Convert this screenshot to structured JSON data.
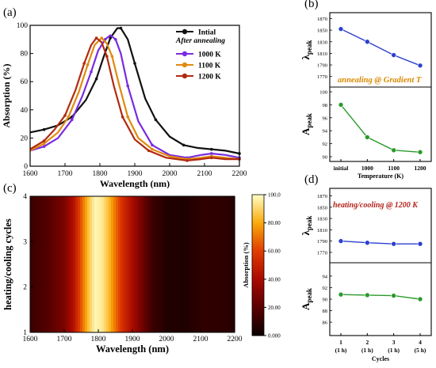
{
  "colors": {
    "intial": "#111111",
    "k1000": "#7a2be0",
    "k1100": "#e08a10",
    "k1200": "#b22a10",
    "peak_series": "#2b3fd0",
    "abs_series": "#2a9a2a",
    "annotation_a": "#d98a00",
    "annotation_d": "#b2221a"
  },
  "chart_data": [
    {
      "panel": "(a)",
      "type": "line",
      "xlabel": "Wavelength (nm)",
      "ylabel": "Absorption (%)",
      "xlim": [
        1600,
        2200
      ],
      "ylim": [
        0,
        100
      ],
      "xticks": [
        1600,
        1700,
        1800,
        1900,
        2000,
        2100,
        2200
      ],
      "yticks": [
        0,
        20,
        40,
        60,
        80,
        100
      ],
      "legend_header": "After annealing",
      "legend_placement": "top-right",
      "series": [
        {
          "name": "Intial",
          "x": [
            1600,
            1640,
            1680,
            1720,
            1760,
            1790,
            1810,
            1830,
            1850,
            1860,
            1880,
            1900,
            1930,
            1960,
            2000,
            2040,
            2080,
            2120,
            2160,
            2200
          ],
          "y": [
            24,
            26,
            29,
            35,
            47,
            62,
            77,
            91,
            98,
            98,
            90,
            73,
            48,
            33,
            21,
            15,
            13,
            12,
            11,
            9
          ]
        },
        {
          "name": "1000 K",
          "x": [
            1600,
            1640,
            1680,
            1720,
            1750,
            1775,
            1795,
            1815,
            1830,
            1845,
            1860,
            1880,
            1910,
            1950,
            2000,
            2050,
            2090,
            2120,
            2160,
            2200
          ],
          "y": [
            11,
            14,
            20,
            33,
            50,
            67,
            82,
            90,
            93,
            90,
            80,
            57,
            32,
            15,
            8,
            6,
            8,
            9,
            8,
            6
          ]
        },
        {
          "name": "1100 K",
          "x": [
            1600,
            1640,
            1680,
            1710,
            1740,
            1765,
            1785,
            1805,
            1820,
            1835,
            1855,
            1880,
            1910,
            1950,
            2000,
            2050,
            2090,
            2120,
            2160,
            2200
          ],
          "y": [
            11,
            16,
            24,
            35,
            53,
            72,
            86,
            91,
            87,
            78,
            58,
            35,
            20,
            12,
            7,
            5,
            6,
            7,
            6,
            5
          ]
        },
        {
          "name": "1200 K",
          "x": [
            1600,
            1640,
            1670,
            1700,
            1730,
            1755,
            1775,
            1790,
            1805,
            1820,
            1840,
            1865,
            1900,
            1940,
            1990,
            2050,
            2090,
            2120,
            2160,
            2200
          ],
          "y": [
            12,
            18,
            26,
            36,
            54,
            73,
            86,
            91,
            88,
            78,
            57,
            35,
            19,
            11,
            6,
            4,
            5,
            6,
            5,
            5
          ]
        }
      ]
    },
    {
      "panel": "(b)",
      "type": "line",
      "xlabel": "Temperature (K)",
      "categories": [
        "initial",
        "1000",
        "1100",
        "1200"
      ],
      "annotation": "annealing @ Gradient T",
      "subplots": [
        {
          "ylabel": "λpeak",
          "ylim": [
            1760,
            1872
          ],
          "yticks": [
            1770,
            1790,
            1810,
            1830,
            1850,
            1870
          ],
          "values": [
            1852,
            1830,
            1807,
            1789
          ]
        },
        {
          "ylabel": "Apeak",
          "ylim": [
            90,
            100
          ],
          "yticks": [
            90,
            92,
            94,
            96,
            98,
            100
          ],
          "values": [
            98,
            93,
            91,
            90.7
          ]
        }
      ]
    },
    {
      "panel": "(c)",
      "type": "heatmap",
      "xlabel": "Wavelength (nm)",
      "ylabel": "heating/cooling cycles",
      "xlim": [
        1600,
        2200
      ],
      "ylim": [
        1,
        4
      ],
      "xticks": [
        1600,
        1700,
        1800,
        1900,
        2000,
        2100,
        2200
      ],
      "yticks": [
        1,
        2,
        3,
        4
      ],
      "colorbar_label": "Absorption (%)",
      "colorbar_ticks": [
        "0.000",
        "20.00",
        "40.00",
        "60.00",
        "80.00",
        "100.0"
      ],
      "profile_x": [
        1600,
        1650,
        1700,
        1730,
        1750,
        1770,
        1790,
        1810,
        1830,
        1850,
        1870,
        1900,
        1930,
        1960,
        2000,
        2050,
        2100,
        2150,
        2200
      ],
      "profile_y": [
        12,
        18,
        28,
        45,
        65,
        85,
        98,
        95,
        85,
        70,
        55,
        40,
        25,
        12,
        6,
        5,
        9,
        9,
        7
      ]
    },
    {
      "panel": "(d)",
      "type": "line",
      "xlabel": "Cycles",
      "categories": [
        "1",
        "2",
        "3",
        "4"
      ],
      "category_sublabels": [
        "(1 h)",
        "(1 h)",
        "(1 h)",
        "(5 h)"
      ],
      "annotation": "heating/cooling @ 1200 K",
      "subplots": [
        {
          "ylabel": "λpeak",
          "ylim": [
            1760,
            1875
          ],
          "yticks": [
            1770,
            1790,
            1810,
            1830,
            1850,
            1870
          ],
          "values": [
            1790,
            1787,
            1785,
            1785
          ]
        },
        {
          "ylabel": "Apeak",
          "ylim": [
            84.5,
            95.5
          ],
          "yticks": [
            86,
            88,
            90,
            92,
            94
          ],
          "values": [
            90.8,
            90.7,
            90.6,
            90.0
          ]
        }
      ]
    }
  ]
}
